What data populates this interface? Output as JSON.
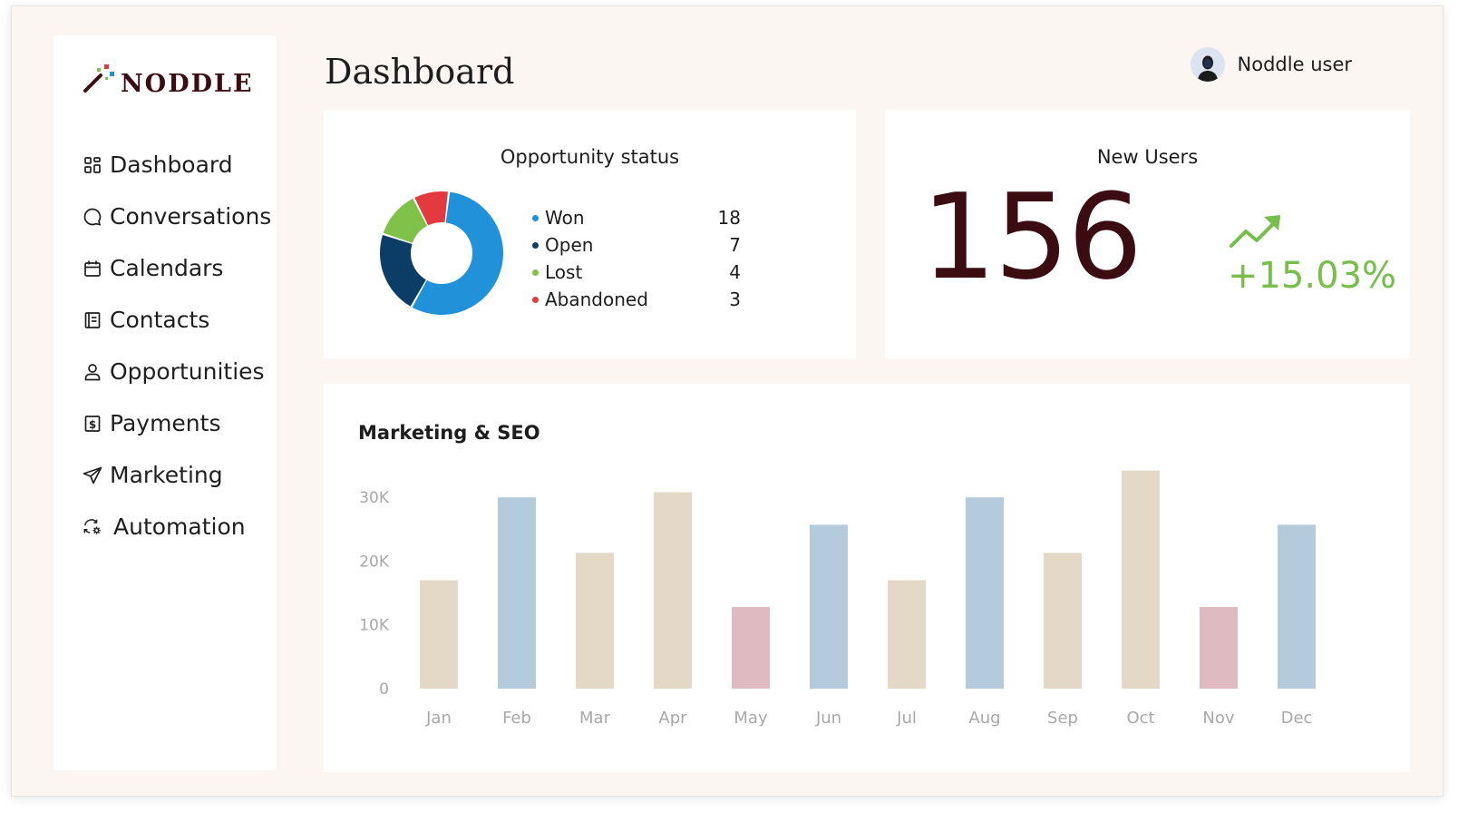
{
  "brand": {
    "name": "NODDLE"
  },
  "sidebar": {
    "items": [
      {
        "label": "Dashboard",
        "icon": "grid-icon"
      },
      {
        "label": "Conversations",
        "icon": "chat-bubble-icon"
      },
      {
        "label": "Calendars",
        "icon": "calendar-icon"
      },
      {
        "label": "Contacts",
        "icon": "contact-book-icon"
      },
      {
        "label": "Opportunities",
        "icon": "person-icon"
      },
      {
        "label": "Payments",
        "icon": "dollar-receipt-icon"
      },
      {
        "label": "Marketing",
        "icon": "paper-plane-icon"
      },
      {
        "label": "Automation",
        "icon": "automation-gear-icon"
      }
    ]
  },
  "header": {
    "title": "Dashboard",
    "user_name": "Noddle user"
  },
  "opportunity": {
    "title": "Opportunity status",
    "items": [
      {
        "label": "Won",
        "value": "18",
        "color": "#2192d9"
      },
      {
        "label": "Open",
        "value": "7",
        "color": "#0c3d67"
      },
      {
        "label": "Lost",
        "value": "4",
        "color": "#80c249"
      },
      {
        "label": "Abandoned",
        "value": "3",
        "color": "#e23a3e"
      }
    ]
  },
  "new_users": {
    "title": "New Users",
    "count": "156",
    "change": "+15.03%",
    "change_color": "#76bf4a"
  },
  "marketing": {
    "title": "Marketing & SEO"
  },
  "chart_data": {
    "type": "bar",
    "title": "Marketing & SEO",
    "categories": [
      "Jan",
      "Feb",
      "Mar",
      "Apr",
      "May",
      "Jun",
      "Jul",
      "Aug",
      "Sep",
      "Oct",
      "Nov",
      "Dec"
    ],
    "values": [
      17000,
      30000,
      21300,
      30800,
      12800,
      25700,
      17000,
      30000,
      21300,
      34200,
      12800,
      25700
    ],
    "colors": [
      "#e3d9c6",
      "#b4cadd",
      "#e3d9c6",
      "#e3d9c6",
      "#dfbac0",
      "#b4cadd",
      "#e3d9c6",
      "#b4cadd",
      "#e3d9c6",
      "#e3d9c6",
      "#dfbac0",
      "#b4cadd"
    ],
    "yticks": [
      "0",
      "10K",
      "20K",
      "30K"
    ],
    "ytick_values": [
      0,
      10000,
      20000,
      30000
    ],
    "ylim": [
      0,
      35000
    ],
    "grid": false,
    "legend": "none"
  }
}
